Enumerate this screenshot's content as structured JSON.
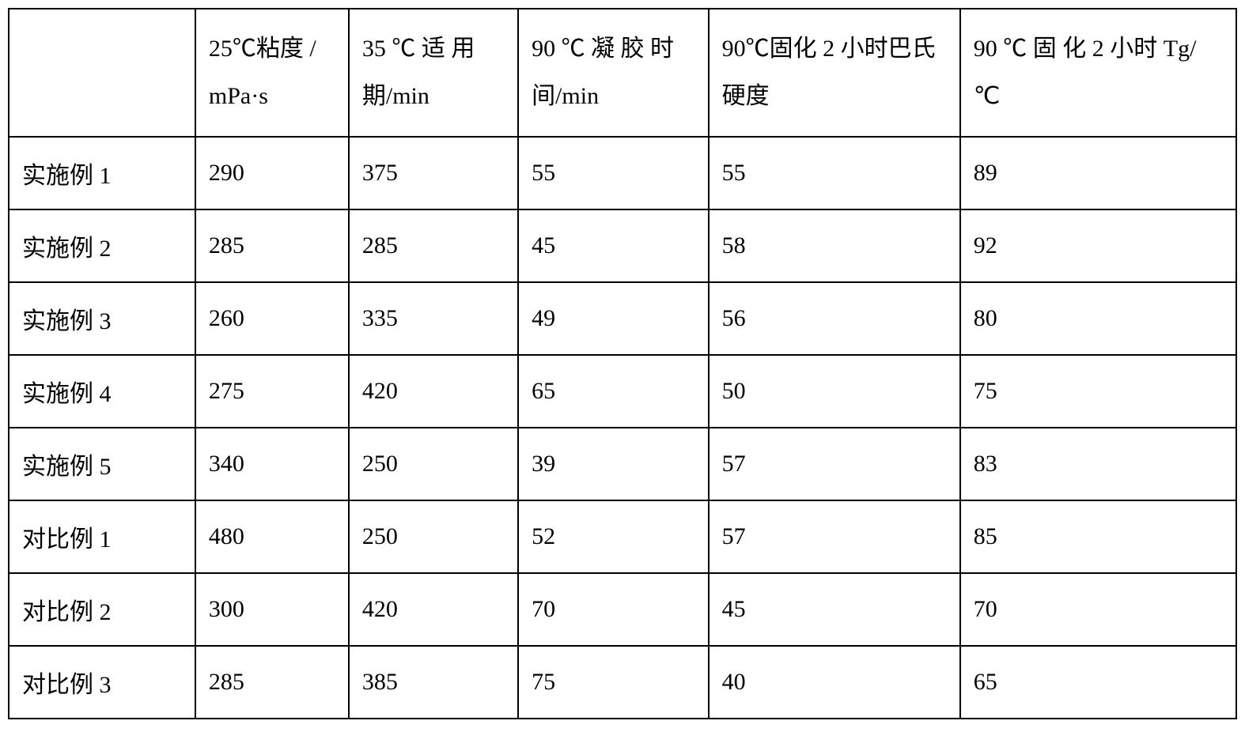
{
  "table": {
    "type": "table",
    "background_color": "#ffffff",
    "border_color": "#000000",
    "border_width": 2,
    "font_family": "SimSun",
    "header_fontsize": 30,
    "cell_fontsize": 30,
    "text_color": "#000000",
    "column_widths_pct": [
      15.2,
      12.5,
      13.8,
      15.5,
      20.5,
      22.5
    ],
    "header_row_height": 160,
    "data_row_height": 92,
    "columns": [
      "",
      "25℃粘度 / mPa·s",
      "35 ℃ 适 用期/min",
      "90 ℃ 凝 胶 时间/min",
      "90℃固化 2 小时巴氏硬度",
      "90 ℃ 固 化 2 小时 Tg/℃"
    ],
    "rows": [
      [
        "实施例 1",
        "290",
        "375",
        "55",
        "55",
        "89"
      ],
      [
        "实施例 2",
        "285",
        "285",
        "45",
        "58",
        "92"
      ],
      [
        "实施例 3",
        "260",
        "335",
        "49",
        "56",
        "80"
      ],
      [
        "实施例 4",
        "275",
        "420",
        "65",
        "50",
        "75"
      ],
      [
        "实施例 5",
        "340",
        "250",
        "39",
        "57",
        "83"
      ],
      [
        "对比例 1",
        "480",
        "250",
        "52",
        "57",
        "85"
      ],
      [
        "对比例 2",
        "300",
        "420",
        "70",
        "45",
        "70"
      ],
      [
        "对比例 3",
        "285",
        "385",
        "75",
        "40",
        "65"
      ]
    ]
  }
}
